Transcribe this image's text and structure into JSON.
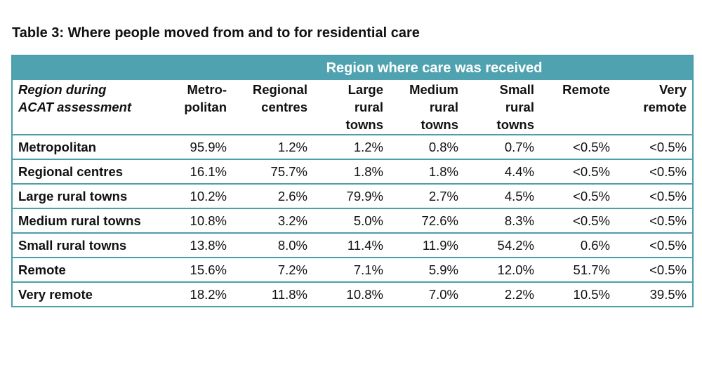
{
  "title": "Table 3: Where people moved from and to for residential care",
  "table": {
    "group_header": "Region where care was received",
    "row_header": [
      "Region during",
      "ACAT assessment"
    ],
    "columns": [
      [
        "Metro-",
        "politan"
      ],
      [
        "Regional",
        "centres"
      ],
      [
        "Large",
        "rural",
        "towns"
      ],
      [
        "Medium",
        "rural",
        "towns"
      ],
      [
        "Small",
        "rural",
        "towns"
      ],
      [
        "Remote"
      ],
      [
        "Very",
        "remote"
      ]
    ],
    "rows": [
      [
        "Metropolitan",
        "95.9%",
        "1.2%",
        "1.2%",
        "0.8%",
        "0.7%",
        "<0.5%",
        "<0.5%"
      ],
      [
        "Regional centres",
        "16.1%",
        "75.7%",
        "1.8%",
        "1.8%",
        "4.4%",
        "<0.5%",
        "<0.5%"
      ],
      [
        "Large rural towns",
        "10.2%",
        "2.6%",
        "79.9%",
        "2.7%",
        "4.5%",
        "<0.5%",
        "<0.5%"
      ],
      [
        "Medium rural towns",
        "10.8%",
        "3.2%",
        "5.0%",
        "72.6%",
        "8.3%",
        "<0.5%",
        "<0.5%"
      ],
      [
        "Small rural towns",
        "13.8%",
        "8.0%",
        "11.4%",
        "11.9%",
        "54.2%",
        "0.6%",
        "<0.5%"
      ],
      [
        "Remote",
        "15.6%",
        "7.2%",
        "7.1%",
        "5.9%",
        "12.0%",
        "51.7%",
        "<0.5%"
      ],
      [
        "Very remote",
        "18.2%",
        "11.8%",
        "10.8%",
        "7.0%",
        "2.2%",
        "10.5%",
        "39.5%"
      ]
    ]
  }
}
